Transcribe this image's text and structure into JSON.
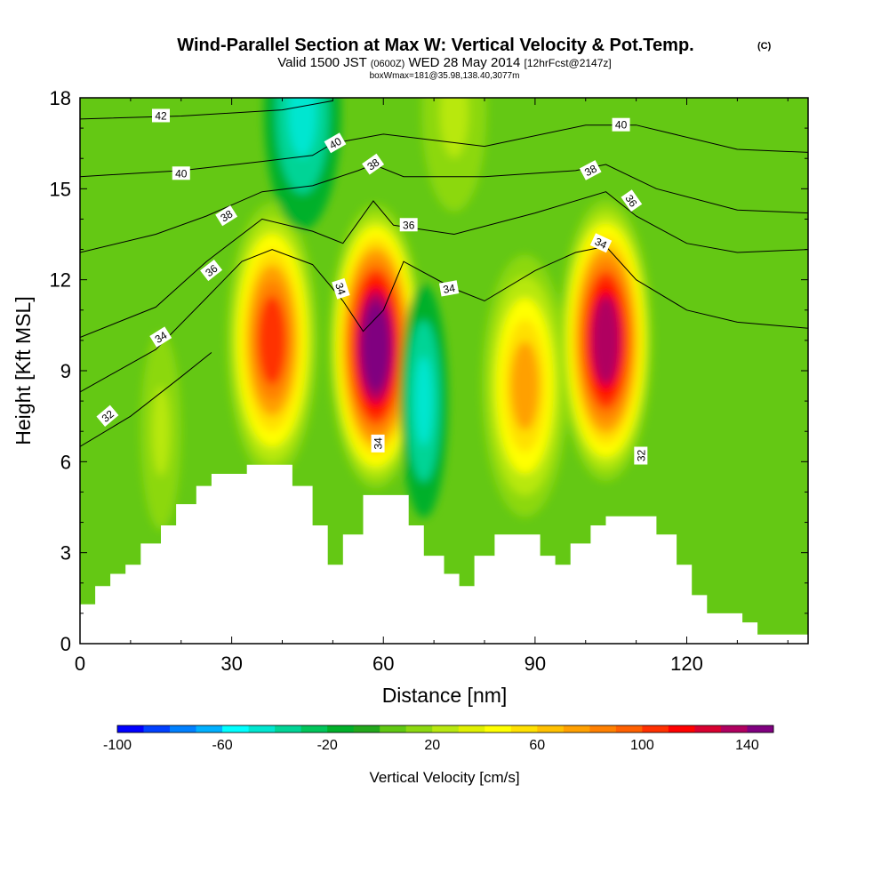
{
  "header": {
    "title": "Wind-Parallel Section at Max W: Vertical Velocity & Pot.Temp.",
    "copyright": "(C)",
    "valid_prefix": "Valid 1500 JST",
    "valid_utc": "(0600Z)",
    "valid_date": "WED 28 May 2014",
    "forecast": "[12hrFcst@2147z]",
    "boxinfo": "boxWmax=181@35.98,138.40,3077m"
  },
  "chart_data": {
    "type": "heatmap",
    "xlabel": "Distance [nm]",
    "ylabel": "Height [Kft MSL]",
    "xlim": [
      0,
      144
    ],
    "ylim": [
      0,
      18
    ],
    "x_ticks": [
      0,
      30,
      60,
      90,
      120
    ],
    "y_ticks": [
      0,
      3,
      6,
      9,
      12,
      15,
      18
    ],
    "colorbar": {
      "label": "Vertical Velocity [cm/s]",
      "range": [
        -100,
        150
      ],
      "step": 10,
      "tick_values": [
        -100,
        -60,
        -20,
        20,
        60,
        100,
        140
      ],
      "tick_labels": [
        "-100",
        "-60",
        "-20",
        "20",
        "60",
        "100",
        "140"
      ],
      "colors": [
        "#0000ff",
        "#0040ff",
        "#0080ff",
        "#00b0ff",
        "#00ffff",
        "#00e6d0",
        "#00d496",
        "#00c55a",
        "#00b02a",
        "#22a81c",
        "#60c812",
        "#8cd810",
        "#b8e810",
        "#e0f000",
        "#ffff00",
        "#ffe000",
        "#ffc000",
        "#ffa000",
        "#ff8000",
        "#ff6000",
        "#ff3000",
        "#ff0000",
        "#d80030",
        "#b00060",
        "#800080"
      ]
    },
    "vertical_velocity_cores": [
      {
        "x": 38,
        "z": 10,
        "w": 100
      },
      {
        "x": 58.5,
        "z": 9.8,
        "w": 150
      },
      {
        "x": 68,
        "z": 8,
        "w": -50
      },
      {
        "x": 88,
        "z": 8.5,
        "w": 70
      },
      {
        "x": 104,
        "z": 10,
        "w": 130
      },
      {
        "x": 16,
        "z": 7,
        "w": 35
      },
      {
        "x": 74,
        "z": 17.5,
        "w": 35
      },
      {
        "x": 44,
        "z": 17.5,
        "w": -60
      }
    ],
    "theta_contours": [
      {
        "value": 32,
        "points": [
          [
            0,
            6.5
          ],
          [
            10,
            7.5
          ],
          [
            20,
            8.8
          ],
          [
            26,
            9.6
          ]
        ]
      },
      {
        "value": 34,
        "points": [
          [
            0,
            8.3
          ],
          [
            15,
            9.7
          ],
          [
            25,
            11.4
          ],
          [
            32,
            12.6
          ],
          [
            38,
            13
          ],
          [
            46,
            12.5
          ],
          [
            52,
            11.3
          ],
          [
            56,
            10.3
          ],
          [
            60,
            11
          ],
          [
            64,
            12.6
          ],
          [
            74,
            11.7
          ],
          [
            80,
            11.3
          ],
          [
            90,
            12.3
          ],
          [
            98,
            12.9
          ],
          [
            104,
            13.1
          ],
          [
            110,
            12
          ],
          [
            120,
            11
          ],
          [
            130,
            10.6
          ],
          [
            144,
            10.4
          ]
        ]
      },
      {
        "value": 36,
        "points": [
          [
            0,
            10.1
          ],
          [
            15,
            11.1
          ],
          [
            25,
            12.6
          ],
          [
            36,
            14
          ],
          [
            46,
            13.6
          ],
          [
            52,
            13.2
          ],
          [
            58,
            14.6
          ],
          [
            62,
            13.8
          ],
          [
            74,
            13.5
          ],
          [
            90,
            14.2
          ],
          [
            104,
            14.9
          ],
          [
            110,
            14.1
          ],
          [
            120,
            13.2
          ],
          [
            130,
            12.9
          ],
          [
            144,
            13
          ]
        ]
      },
      {
        "value": 38,
        "points": [
          [
            0,
            12.9
          ],
          [
            15,
            13.5
          ],
          [
            25,
            14.1
          ],
          [
            36,
            14.9
          ],
          [
            46,
            15.1
          ],
          [
            55,
            15.6
          ],
          [
            58,
            15.8
          ],
          [
            64,
            15.4
          ],
          [
            80,
            15.4
          ],
          [
            98,
            15.6
          ],
          [
            104,
            15.8
          ],
          [
            114,
            15
          ],
          [
            130,
            14.3
          ],
          [
            144,
            14.2
          ]
        ]
      },
      {
        "value": 40,
        "points": [
          [
            0,
            15.4
          ],
          [
            20,
            15.6
          ],
          [
            36,
            15.9
          ],
          [
            46,
            16.1
          ],
          [
            50,
            16.5
          ],
          [
            60,
            16.8
          ],
          [
            80,
            16.4
          ],
          [
            100,
            17.1
          ],
          [
            110,
            17.1
          ],
          [
            130,
            16.3
          ],
          [
            144,
            16.2
          ]
        ]
      },
      {
        "value": 42,
        "points": [
          [
            0,
            17.3
          ],
          [
            20,
            17.4
          ],
          [
            40,
            17.6
          ],
          [
            50,
            17.9
          ]
        ]
      }
    ],
    "contour_labels": [
      {
        "text": "42",
        "x": 16,
        "z": 17.4,
        "angle": 0
      },
      {
        "text": "40",
        "x": 20,
        "z": 15.5,
        "angle": 0
      },
      {
        "text": "40",
        "x": 50.5,
        "z": 16.5,
        "angle": -30
      },
      {
        "text": "40",
        "x": 107,
        "z": 17.1,
        "angle": 0
      },
      {
        "text": "38",
        "x": 29,
        "z": 14.1,
        "angle": -32
      },
      {
        "text": "38",
        "x": 58,
        "z": 15.8,
        "angle": -35
      },
      {
        "text": "38",
        "x": 101,
        "z": 15.6,
        "angle": -28
      },
      {
        "text": "36",
        "x": 26,
        "z": 12.3,
        "angle": -38
      },
      {
        "text": "36",
        "x": 65,
        "z": 13.8,
        "angle": 0
      },
      {
        "text": "36",
        "x": 109,
        "z": 14.6,
        "angle": 55
      },
      {
        "text": "34",
        "x": 16,
        "z": 10.1,
        "angle": -32
      },
      {
        "text": "34",
        "x": 51.5,
        "z": 11.7,
        "angle": 72
      },
      {
        "text": "34",
        "x": 73,
        "z": 11.7,
        "angle": -10
      },
      {
        "text": "34",
        "x": 103,
        "z": 13.2,
        "angle": 25
      },
      {
        "text": "34",
        "x": 59,
        "z": 6.6,
        "angle": -90
      },
      {
        "text": "32",
        "x": 5.5,
        "z": 7.5,
        "angle": -40
      },
      {
        "text": "32",
        "x": 111,
        "z": 6.2,
        "angle": -90
      }
    ],
    "terrain": [
      [
        0,
        1.3
      ],
      [
        3,
        1.3
      ],
      [
        3,
        1.9
      ],
      [
        6,
        1.9
      ],
      [
        6,
        2.3
      ],
      [
        9,
        2.3
      ],
      [
        9,
        2.6
      ],
      [
        12,
        2.6
      ],
      [
        12,
        3.3
      ],
      [
        16,
        3.3
      ],
      [
        16,
        3.9
      ],
      [
        19,
        3.9
      ],
      [
        19,
        4.6
      ],
      [
        23,
        4.6
      ],
      [
        23,
        5.2
      ],
      [
        26,
        5.2
      ],
      [
        26,
        5.6
      ],
      [
        33,
        5.6
      ],
      [
        33,
        5.9
      ],
      [
        42,
        5.9
      ],
      [
        42,
        5.2
      ],
      [
        46,
        5.2
      ],
      [
        46,
        3.9
      ],
      [
        49,
        3.9
      ],
      [
        49,
        2.6
      ],
      [
        52,
        2.6
      ],
      [
        52,
        3.6
      ],
      [
        56,
        3.6
      ],
      [
        56,
        4.9
      ],
      [
        65,
        4.9
      ],
      [
        65,
        3.9
      ],
      [
        68,
        3.9
      ],
      [
        68,
        2.9
      ],
      [
        72,
        2.9
      ],
      [
        72,
        2.3
      ],
      [
        75,
        2.3
      ],
      [
        75,
        1.9
      ],
      [
        78,
        1.9
      ],
      [
        78,
        2.9
      ],
      [
        82,
        2.9
      ],
      [
        82,
        3.6
      ],
      [
        91,
        3.6
      ],
      [
        91,
        2.9
      ],
      [
        94,
        2.9
      ],
      [
        94,
        2.6
      ],
      [
        97,
        2.6
      ],
      [
        97,
        3.3
      ],
      [
        101,
        3.3
      ],
      [
        101,
        3.9
      ],
      [
        104,
        3.9
      ],
      [
        104,
        4.2
      ],
      [
        114,
        4.2
      ],
      [
        114,
        3.6
      ],
      [
        118,
        3.6
      ],
      [
        118,
        2.6
      ],
      [
        121,
        2.6
      ],
      [
        121,
        1.6
      ],
      [
        124,
        1.6
      ],
      [
        124,
        1
      ],
      [
        131,
        1
      ],
      [
        131,
        0.7
      ],
      [
        134,
        0.7
      ],
      [
        134,
        0.3
      ],
      [
        144,
        0.3
      ]
    ]
  }
}
